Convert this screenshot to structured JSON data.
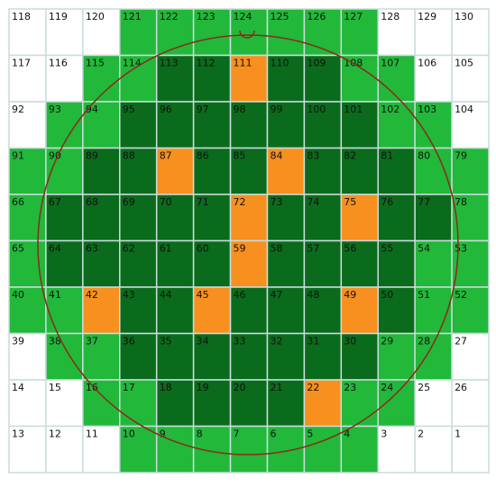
{
  "grid": {
    "rows": [
      [
        [
          "118",
          "#ffffff"
        ],
        [
          "119",
          "#ffffff"
        ],
        [
          "120",
          "#ffffff"
        ],
        [
          "121",
          "#22b83a"
        ],
        [
          "122",
          "#22b83a"
        ],
        [
          "123",
          "#22b83a"
        ],
        [
          "124",
          "#22b83a"
        ],
        [
          "125",
          "#22b83a"
        ],
        [
          "126",
          "#22b83a"
        ],
        [
          "127",
          "#22b83a"
        ],
        [
          "128",
          "#ffffff"
        ],
        [
          "129",
          "#ffffff"
        ],
        [
          "130",
          "#ffffff"
        ]
      ],
      [
        [
          "117",
          "#ffffff"
        ],
        [
          "116",
          "#ffffff"
        ],
        [
          "115",
          "#22b83a"
        ],
        [
          "114",
          "#22b83a"
        ],
        [
          "113",
          "#0b6b1c"
        ],
        [
          "112",
          "#0b6b1c"
        ],
        [
          "111",
          "#f7901e"
        ],
        [
          "110",
          "#0b6b1c"
        ],
        [
          "109",
          "#0b6b1c"
        ],
        [
          "108",
          "#22b83a"
        ],
        [
          "107",
          "#22b83a"
        ],
        [
          "106",
          "#ffffff"
        ],
        [
          "105",
          "#ffffff"
        ]
      ],
      [
        [
          "92",
          "#ffffff"
        ],
        [
          "93",
          "#22b83a"
        ],
        [
          "94",
          "#22b83a"
        ],
        [
          "95",
          "#0b6b1c"
        ],
        [
          "96",
          "#0b6b1c"
        ],
        [
          "97",
          "#0b6b1c"
        ],
        [
          "98",
          "#0b6b1c"
        ],
        [
          "99",
          "#0b6b1c"
        ],
        [
          "100",
          "#0b6b1c"
        ],
        [
          "101",
          "#0b6b1c"
        ],
        [
          "102",
          "#22b83a"
        ],
        [
          "103",
          "#22b83a"
        ],
        [
          "104",
          "#ffffff"
        ]
      ],
      [
        [
          "91",
          "#22b83a"
        ],
        [
          "90",
          "#22b83a"
        ],
        [
          "89",
          "#0b6b1c"
        ],
        [
          "88",
          "#0b6b1c"
        ],
        [
          "87",
          "#f7901e"
        ],
        [
          "86",
          "#0b6b1c"
        ],
        [
          "85",
          "#0b6b1c"
        ],
        [
          "84",
          "#f7901e"
        ],
        [
          "83",
          "#0b6b1c"
        ],
        [
          "82",
          "#0b6b1c"
        ],
        [
          "81",
          "#0b6b1c"
        ],
        [
          "80",
          "#22b83a"
        ],
        [
          "79",
          "#22b83a"
        ]
      ],
      [
        [
          "66",
          "#22b83a"
        ],
        [
          "67",
          "#0b6b1c"
        ],
        [
          "68",
          "#0b6b1c"
        ],
        [
          "69",
          "#0b6b1c"
        ],
        [
          "70",
          "#0b6b1c"
        ],
        [
          "71",
          "#0b6b1c"
        ],
        [
          "72",
          "#f7901e"
        ],
        [
          "73",
          "#0b6b1c"
        ],
        [
          "74",
          "#0b6b1c"
        ],
        [
          "75",
          "#f7901e"
        ],
        [
          "76",
          "#0b6b1c"
        ],
        [
          "77",
          "#0b6b1c"
        ],
        [
          "78",
          "#22b83a"
        ]
      ],
      [
        [
          "65",
          "#22b83a"
        ],
        [
          "64",
          "#0b6b1c"
        ],
        [
          "63",
          "#0b6b1c"
        ],
        [
          "62",
          "#0b6b1c"
        ],
        [
          "61",
          "#0b6b1c"
        ],
        [
          "60",
          "#0b6b1c"
        ],
        [
          "59",
          "#f7901e"
        ],
        [
          "58",
          "#0b6b1c"
        ],
        [
          "57",
          "#0b6b1c"
        ],
        [
          "56",
          "#0b6b1c"
        ],
        [
          "55",
          "#0b6b1c"
        ],
        [
          "54",
          "#22b83a"
        ],
        [
          "53",
          "#22b83a"
        ]
      ],
      [
        [
          "40",
          "#22b83a"
        ],
        [
          "41",
          "#22b83a"
        ],
        [
          "42",
          "#f7901e"
        ],
        [
          "43",
          "#0b6b1c"
        ],
        [
          "44",
          "#0b6b1c"
        ],
        [
          "45",
          "#f7901e"
        ],
        [
          "46",
          "#0b6b1c"
        ],
        [
          "47",
          "#0b6b1c"
        ],
        [
          "48",
          "#0b6b1c"
        ],
        [
          "49",
          "#f7901e"
        ],
        [
          "50",
          "#0b6b1c"
        ],
        [
          "51",
          "#22b83a"
        ],
        [
          "52",
          "#22b83a"
        ]
      ],
      [
        [
          "39",
          "#ffffff"
        ],
        [
          "38",
          "#22b83a"
        ],
        [
          "37",
          "#22b83a"
        ],
        [
          "36",
          "#0b6b1c"
        ],
        [
          "35",
          "#0b6b1c"
        ],
        [
          "34",
          "#0b6b1c"
        ],
        [
          "33",
          "#0b6b1c"
        ],
        [
          "32",
          "#0b6b1c"
        ],
        [
          "31",
          "#0b6b1c"
        ],
        [
          "30",
          "#0b6b1c"
        ],
        [
          "29",
          "#22b83a"
        ],
        [
          "28",
          "#22b83a"
        ],
        [
          "27",
          "#ffffff"
        ]
      ],
      [
        [
          "14",
          "#ffffff"
        ],
        [
          "15",
          "#ffffff"
        ],
        [
          "16",
          "#22b83a"
        ],
        [
          "17",
          "#22b83a"
        ],
        [
          "18",
          "#0b6b1c"
        ],
        [
          "19",
          "#0b6b1c"
        ],
        [
          "20",
          "#0b6b1c"
        ],
        [
          "21",
          "#0b6b1c"
        ],
        [
          "22",
          "#f7901e"
        ],
        [
          "23",
          "#22b83a"
        ],
        [
          "24",
          "#22b83a"
        ],
        [
          "25",
          "#ffffff"
        ],
        [
          "26",
          "#ffffff"
        ]
      ],
      [
        [
          "13",
          "#ffffff"
        ],
        [
          "12",
          "#ffffff"
        ],
        [
          "11",
          "#ffffff"
        ],
        [
          "10",
          "#22b83a"
        ],
        [
          "9",
          "#22b83a"
        ],
        [
          "8",
          "#22b83a"
        ],
        [
          "7",
          "#22b83a"
        ],
        [
          "6",
          "#22b83a"
        ],
        [
          "5",
          "#22b83a"
        ],
        [
          "4",
          "#22b83a"
        ],
        [
          "3",
          "#ffffff"
        ],
        [
          "2",
          "#ffffff"
        ],
        [
          "1",
          "#ffffff"
        ]
      ]
    ]
  }
}
